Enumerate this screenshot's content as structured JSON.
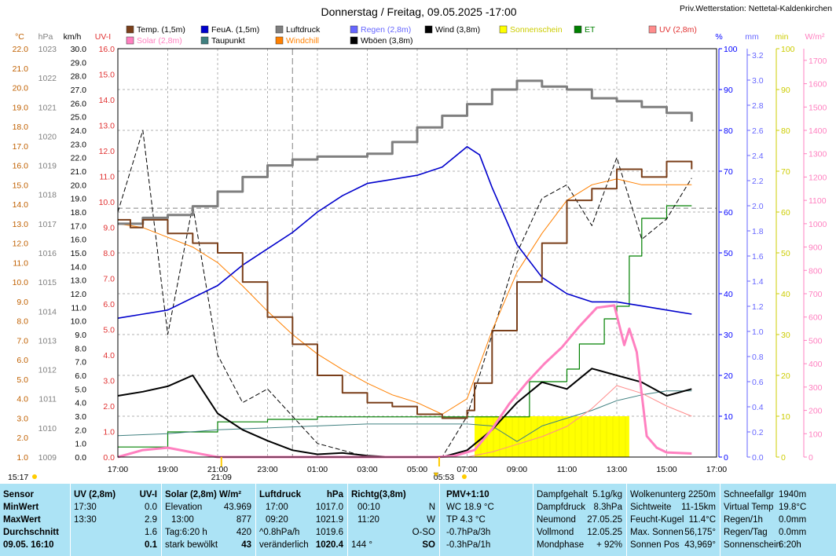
{
  "title": "Donnerstag / Freitag, 09.05.2025  -17:00",
  "station": "Priv.Wetterstation: Nettetal-Kaldenkirchen",
  "legend": [
    {
      "label": "Temp. (1,5m)",
      "color": "#7a3f1a",
      "text": "#000000"
    },
    {
      "label": "FeuA. (1,5m)",
      "color": "#0000cc",
      "text": "#000000"
    },
    {
      "label": "Luftdruck",
      "color": "#7f7f7f",
      "text": "#000000"
    },
    {
      "label": "Regen (2,8m)",
      "color": "#6666ff",
      "text": "#6666ff"
    },
    {
      "label": "Wind (3,8m)",
      "color": "#000000",
      "text": "#000000"
    },
    {
      "label": "Sonnenschein",
      "color": "#ffff00",
      "text": "#cccc00"
    },
    {
      "label": "ET",
      "color": "#008000",
      "text": "#008000"
    },
    {
      "label": "UV (2,8m)",
      "color": "#ff8c8c",
      "text": "#e03030"
    },
    {
      "label": "Solar (2,8m)",
      "color": "#ff80c0",
      "text": "#ff80c0"
    },
    {
      "label": "Taupunkt",
      "color": "#408080",
      "text": "#000000"
    },
    {
      "label": "Windchill",
      "color": "#ff8000",
      "text": "#ff8000"
    },
    {
      "label": "Wböen (3,8m)",
      "color": "#000000",
      "text": "#000000"
    }
  ],
  "axis_titles": {
    "temp": "°C",
    "press": "hPa",
    "wind": "km/h",
    "uv": "UV-I",
    "hum": "%",
    "rain": "mm",
    "sun": "min",
    "solar": "W/m²"
  },
  "axis_colors": {
    "temp": "#c06000",
    "press": "#808080",
    "wind": "#000000",
    "uv": "#e03030",
    "hum": "#0000ff",
    "rain": "#6666ff",
    "sun": "#cccc00",
    "solar": "#ff80c0"
  },
  "left_axes": {
    "temp": [
      "1.0",
      "2.0",
      "3.0",
      "4.0",
      "5.0",
      "6.0",
      "7.0",
      "8.0",
      "9.0",
      "10.0",
      "11.0",
      "12.0",
      "13.0",
      "14.0",
      "15.0",
      "16.0",
      "17.0",
      "18.0",
      "19.0",
      "20.0",
      "21.0",
      "22.0"
    ],
    "press": [
      "1009",
      "1010",
      "1011",
      "1012",
      "1013",
      "1014",
      "1015",
      "1016",
      "1017",
      "1018",
      "1019",
      "1020",
      "1021",
      "1022",
      "1023"
    ],
    "wind": [
      "0.0",
      "1.0",
      "2.0",
      "3.0",
      "4.0",
      "5.0",
      "6.0",
      "7.0",
      "8.0",
      "9.0",
      "10.0",
      "11.0",
      "12.0",
      "13.0",
      "14.0",
      "15.0",
      "16.0",
      "17.0",
      "18.0",
      "19.0",
      "20.0",
      "21.0",
      "22.0",
      "23.0",
      "24.0",
      "25.0",
      "26.0",
      "27.0",
      "28.0",
      "29.0",
      "30.0"
    ],
    "uv": [
      "0.0",
      "1.0",
      "2.0",
      "3.0",
      "4.0",
      "5.0",
      "6.0",
      "7.0",
      "8.0",
      "9.0",
      "10.0",
      "11.0",
      "12.0",
      "13.0",
      "14.0",
      "15.0",
      "16.0"
    ]
  },
  "right_axes": {
    "hum": [
      "0",
      "10",
      "20",
      "30",
      "40",
      "50",
      "60",
      "70",
      "80",
      "90",
      "100"
    ],
    "rain": [
      "0.0",
      "0.2",
      "0.4",
      "0.6",
      "0.8",
      "1.0",
      "1.2",
      "1.4",
      "1.6",
      "1.8",
      "2.0",
      "2.2",
      "2.4",
      "2.6",
      "2.8",
      "3.0",
      "3.2"
    ],
    "sun": [
      "0",
      "10",
      "20",
      "30",
      "40",
      "50",
      "60",
      "70",
      "80",
      "90",
      "100"
    ],
    "solar": [
      "0",
      "100",
      "200",
      "300",
      "400",
      "500",
      "600",
      "700",
      "800",
      "900",
      "1000",
      "1100",
      "1200",
      "1300",
      "1400",
      "1500",
      "1600",
      "1700"
    ]
  },
  "time_labels": [
    "17:00",
    "19:00",
    "21:00",
    "23:00",
    "01:00",
    "03:00",
    "05:00",
    "07:00",
    "09:00",
    "11:00",
    "13:00",
    "15:00",
    "17:00"
  ],
  "bottom_notes": {
    "left_time": "15:17",
    "sunset": "21:09",
    "sunrise": "05:53"
  },
  "chart_data": {
    "type": "line",
    "x_range": [
      "17:00",
      "17:00"
    ],
    "series": [
      {
        "name": "Temp. (1,5m)",
        "axis": "°C",
        "x": [
          0,
          0.5,
          1,
          2,
          3,
          4,
          5,
          6,
          7,
          8,
          9,
          10,
          11,
          12,
          13,
          14,
          14.3,
          15,
          16,
          17,
          18,
          19,
          20,
          21,
          22,
          23
        ],
        "values": [
          13.2,
          12.8,
          13.2,
          12.5,
          12.0,
          11.5,
          10.0,
          8.2,
          6.8,
          5.2,
          4.3,
          3.8,
          3.6,
          3.2,
          3.0,
          3.4,
          4.8,
          7.5,
          10.0,
          12.0,
          14.2,
          14.8,
          15.8,
          15.4,
          16.2,
          15.8
        ]
      },
      {
        "name": "Windchill",
        "axis": "°C",
        "x": [
          0,
          1,
          2,
          3,
          4,
          5,
          6,
          7,
          8,
          9,
          10,
          11,
          12,
          13,
          14,
          15,
          16,
          17,
          18,
          19,
          20,
          21,
          22,
          23
        ],
        "values": [
          13.0,
          12.8,
          12.3,
          11.8,
          11.0,
          9.8,
          8.5,
          7.3,
          6.3,
          5.5,
          4.8,
          4.2,
          3.8,
          3.2,
          4.0,
          7.5,
          10.5,
          12.5,
          14.2,
          15.0,
          15.3,
          15.0,
          15.0,
          15.0
        ]
      },
      {
        "name": "Luftdruck",
        "axis": "hPa",
        "x": [
          0,
          1,
          2,
          3,
          4,
          5,
          6,
          7,
          8,
          9,
          10,
          11,
          12,
          13,
          14,
          15,
          16,
          17,
          18,
          19,
          20,
          21,
          22,
          23
        ],
        "values": [
          1017.0,
          1017.2,
          1017.3,
          1017.6,
          1018.1,
          1018.6,
          1019.0,
          1019.2,
          1019.3,
          1019.3,
          1019.4,
          1019.8,
          1020.3,
          1020.7,
          1021.1,
          1021.6,
          1021.9,
          1021.7,
          1021.6,
          1021.3,
          1021.2,
          1021.0,
          1020.8,
          1020.5
        ]
      },
      {
        "name": "FeuA. (1,5m)",
        "axis": "%",
        "x": [
          0,
          1,
          2,
          3,
          4,
          5,
          6,
          7,
          8,
          9,
          10,
          11,
          12,
          13,
          14,
          14.5,
          15,
          16,
          17,
          18,
          19,
          20,
          21,
          22,
          23
        ],
        "values": [
          34,
          35,
          36,
          39,
          42,
          47,
          51,
          55,
          60,
          64,
          67,
          68,
          69,
          71,
          76,
          74,
          66,
          52,
          44,
          40,
          38,
          38,
          37,
          36,
          35
        ]
      },
      {
        "name": "Taupunkt",
        "axis": "°C",
        "x": [
          0,
          2,
          4,
          6,
          8,
          10,
          12,
          14,
          15,
          16,
          17,
          18,
          19,
          20,
          21,
          22,
          23
        ],
        "values": [
          2.1,
          2.2,
          2.4,
          2.5,
          2.6,
          2.7,
          2.7,
          2.7,
          2.6,
          1.8,
          2.6,
          3.0,
          3.4,
          3.9,
          4.2,
          4.4,
          4.4
        ]
      },
      {
        "name": "Wind (3,8m)",
        "axis": "km/h",
        "x": [
          0,
          1,
          2,
          3,
          4,
          5,
          6,
          7,
          8,
          9,
          10,
          11,
          12,
          13,
          14,
          15,
          16,
          17,
          18,
          19,
          20,
          21,
          22,
          23
        ],
        "values": [
          4.5,
          4.8,
          5.2,
          6.0,
          3.2,
          2.0,
          1.2,
          0.5,
          0.2,
          0.3,
          0.1,
          0.0,
          0.0,
          0.0,
          0.5,
          2.0,
          4.0,
          5.5,
          5.0,
          6.5,
          6.0,
          5.5,
          4.5,
          5.0
        ]
      },
      {
        "name": "Wböen (3,8m)",
        "axis": "km/h",
        "x": [
          0,
          1,
          2,
          3,
          4,
          5,
          6,
          7,
          8,
          9,
          10,
          11,
          12,
          13,
          14,
          15,
          16,
          17,
          18,
          19,
          20,
          21,
          22,
          23
        ],
        "values": [
          18.0,
          24.0,
          9.0,
          18.5,
          7.5,
          4.0,
          5.0,
          3.0,
          1.0,
          0.5,
          0.0,
          0.0,
          0.0,
          0.0,
          3.0,
          9.0,
          15.0,
          19.0,
          20.0,
          17.0,
          22.0,
          16.0,
          17.5,
          20.5
        ]
      },
      {
        "name": "Solar (2,8m)",
        "axis": "W/m²",
        "x": [
          0,
          1,
          2,
          3,
          4,
          12.8,
          13.5,
          14.3,
          15,
          15.7,
          16.4,
          17.1,
          17.8,
          18.5,
          19.2,
          19.9,
          20.3,
          20.5,
          20.8,
          21.2,
          21.6,
          22,
          23
        ],
        "values": [
          0,
          30,
          40,
          20,
          0,
          0,
          5,
          30,
          120,
          230,
          320,
          400,
          470,
          560,
          640,
          650,
          480,
          550,
          450,
          90,
          40,
          20,
          15
        ]
      },
      {
        "name": "UV (2,8m)",
        "axis": "UV-I",
        "x": [
          0,
          13,
          14,
          15,
          16,
          17,
          18,
          19,
          20,
          21,
          22,
          23
        ],
        "values": [
          0,
          0,
          0,
          0.2,
          0.5,
          0.8,
          1.2,
          1.9,
          2.8,
          2.5,
          2.0,
          1.6
        ]
      },
      {
        "name": "ET",
        "axis": "mm",
        "x": [
          0,
          2,
          4,
          6,
          8,
          10,
          12,
          14,
          15,
          16,
          16.5,
          17,
          18,
          18.5,
          19,
          19.5,
          20,
          20.5,
          21,
          22,
          23
        ],
        "values": [
          0.08,
          0.2,
          0.28,
          0.3,
          0.32,
          0.32,
          0.32,
          0.32,
          0.32,
          0.32,
          0.6,
          0.6,
          0.7,
          0.9,
          0.9,
          1.1,
          1.2,
          1.6,
          1.9,
          2.0,
          2.0
        ]
      },
      {
        "name": "Sonnenschein",
        "axis": "min",
        "type": "bar",
        "x": [
          14.3,
          20.5
        ],
        "values": [
          10,
          10
        ]
      }
    ]
  },
  "info": {
    "c1": {
      "r1": "Sensor",
      "r2": "MinWert",
      "r3": "MaxWert",
      "r4": "Durchschnitt",
      "r5": "09.05. 16:10"
    },
    "c2": {
      "h1": "UV (2,8m)",
      "h2": "UV-I",
      "a1": "17:30",
      "a2": "0.0",
      "b1": "13:30",
      "b2": "2.9",
      "c2": "1.6",
      "d2": "0.1"
    },
    "c3": {
      "h1": "Solar (2,8m) W/m²",
      "a1": "Elevation",
      "a2": "43.969",
      "b1": "13:00",
      "b2": "877",
      "c1": "Tag:6:20 h",
      "c2": "420",
      "d1": "stark bewölkt",
      "d2": "43"
    },
    "c4": {
      "h1": "Luftdruck",
      "h2": "hPa",
      "a1": "17:00",
      "a2": "1017.0",
      "b1": "09:20",
      "b2": "1021.9",
      "c1": "^0.8hPa/h",
      "c2": "1019.6",
      "d1": "veränderlich",
      "d2": "1020.4"
    },
    "c5": {
      "h1": "Richtg(3,8m)",
      "a1": "00:10",
      "a2": "N",
      "b1": "11:20",
      "b2": "W",
      "c2": "O-SO",
      "d1": "144 °",
      "d2": "SO"
    },
    "c6": {
      "h1": "PMV+1:10",
      "a1": "WC 18.9 °C",
      "b1": "TP 4.3 °C",
      "c1": "-0.7hPa/3h",
      "d1": "-0.3hPa/1h"
    },
    "c7": {
      "a1": "Dampfgehalt",
      "a2": "5.1g/kg",
      "b1": "Dampfdruck",
      "b2": "8.3hPa",
      "c1": "Neumond",
      "c2": "27.05.25",
      "d1": "Vollmond",
      "d2": "12.05.25",
      "e1": "Mondphase",
      "e2": "+ 92%"
    },
    "c8": {
      "a1": "Wolkenunterg",
      "a2": "2250m",
      "b1": "Sichtweite",
      "b2": "11-15km",
      "c1": "Feucht-Kugel",
      "c2": "11.4°C",
      "d1": "Max. Sonnen",
      "d2": "56,175°",
      "e1": "Sonnen Pos",
      "e2": "43,969°"
    },
    "c9": {
      "a1": "Schneefallgr",
      "a2": "1940m",
      "b1": "Virtual Temp",
      "b2": "19.8°C",
      "c1": "Regen/1h",
      "c2": "0.0mm",
      "d1": "Regen/Tag",
      "d2": "0.0mm",
      "e1": "Sonnenschein",
      "e2": "6:20h"
    }
  }
}
